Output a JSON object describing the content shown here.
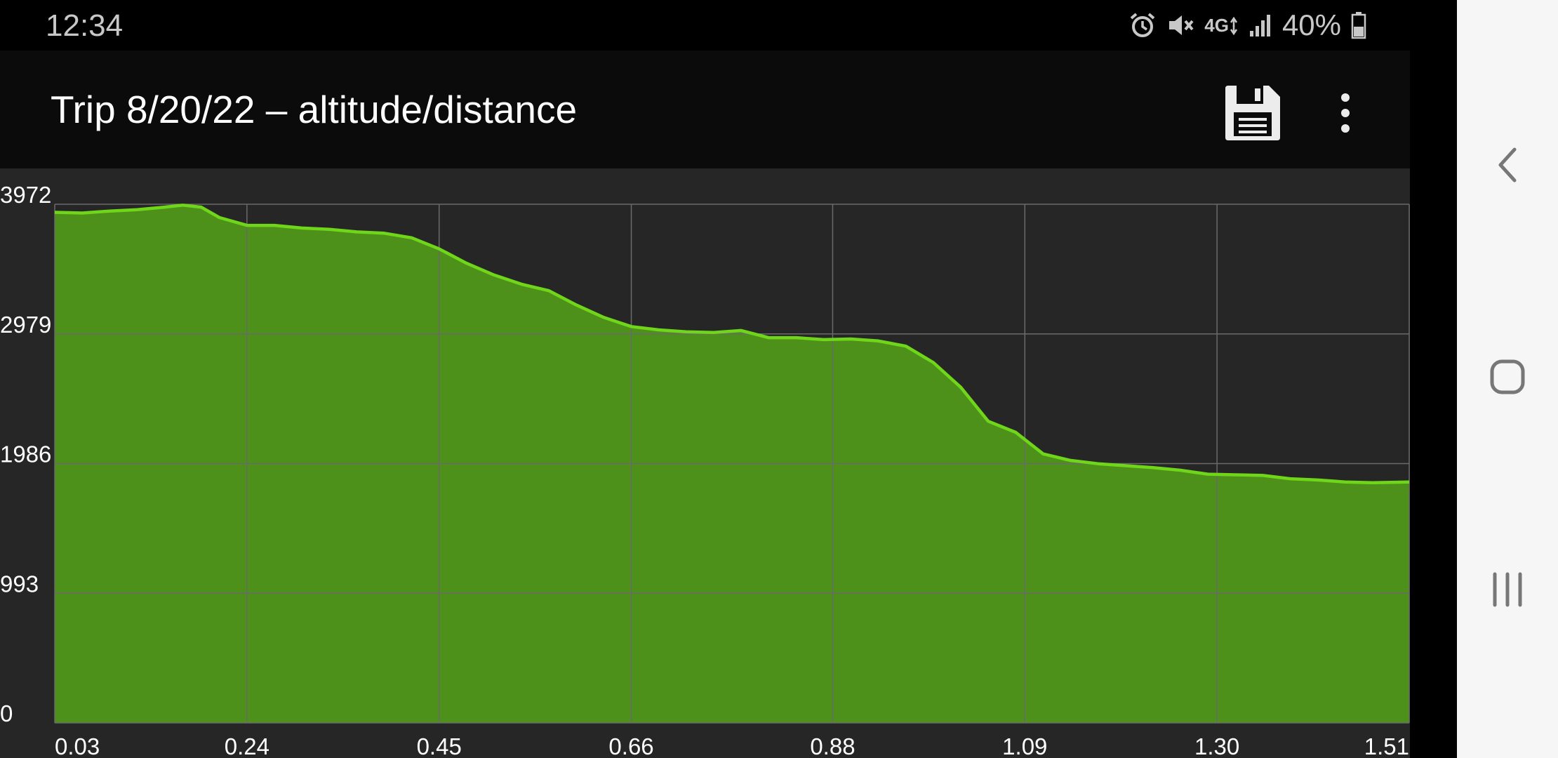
{
  "status_bar": {
    "time": "12:34",
    "icons": [
      "alarm-icon",
      "mute-icon",
      "network-4g-icon",
      "signal-icon",
      "battery-icon"
    ],
    "network_label": "4G",
    "battery_percent": "40%",
    "battery_level": 0.4
  },
  "app_bar": {
    "title": "Trip 8/20/22 – altitude/distance",
    "actions": [
      "save-icon",
      "more-vert-icon"
    ]
  },
  "navigation_bar": {
    "buttons": [
      "back-icon",
      "home-icon",
      "recents-icon"
    ]
  },
  "colors": {
    "fill": "#4d911b",
    "line": "#6fd619",
    "grid": "#6a6a6a",
    "background": "#262626"
  },
  "chart_data": {
    "type": "area",
    "title": "",
    "xlabel": "",
    "ylabel": "",
    "xlim": [
      0.03,
      1.51
    ],
    "ylim": [
      0,
      3972
    ],
    "x_ticks": [
      "0.03",
      "0.24",
      "0.45",
      "0.66",
      "0.88",
      "1.09",
      "1.30",
      "1.51"
    ],
    "y_ticks": [
      "0",
      "993",
      "1986",
      "2979",
      "3972"
    ],
    "grid": true,
    "x": [
      0.03,
      0.06,
      0.09,
      0.12,
      0.15,
      0.17,
      0.19,
      0.21,
      0.24,
      0.27,
      0.3,
      0.33,
      0.36,
      0.39,
      0.42,
      0.45,
      0.48,
      0.51,
      0.54,
      0.57,
      0.6,
      0.63,
      0.66,
      0.69,
      0.72,
      0.75,
      0.78,
      0.81,
      0.84,
      0.87,
      0.9,
      0.93,
      0.96,
      0.99,
      1.02,
      1.05,
      1.08,
      1.11,
      1.14,
      1.17,
      1.2,
      1.23,
      1.26,
      1.29,
      1.32,
      1.35,
      1.38,
      1.41,
      1.44,
      1.47,
      1.51
    ],
    "y": [
      3910,
      3905,
      3920,
      3930,
      3950,
      3965,
      3950,
      3870,
      3810,
      3810,
      3790,
      3780,
      3760,
      3750,
      3715,
      3630,
      3520,
      3430,
      3360,
      3310,
      3200,
      3105,
      3035,
      3010,
      2995,
      2990,
      3005,
      2950,
      2950,
      2935,
      2940,
      2925,
      2885,
      2760,
      2570,
      2310,
      2225,
      2060,
      2010,
      1985,
      1970,
      1955,
      1935,
      1905,
      1900,
      1895,
      1870,
      1860,
      1845,
      1840,
      1845
    ]
  }
}
